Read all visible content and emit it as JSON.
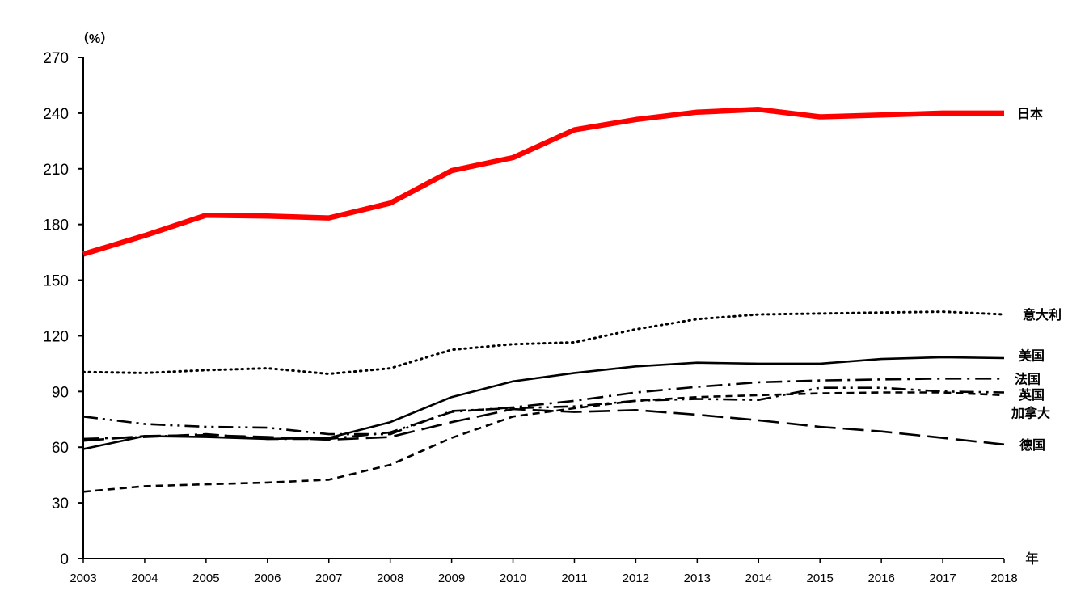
{
  "chart_data": {
    "type": "line",
    "title": "",
    "xlabel": "年",
    "ylabel": "（%）",
    "ylim": [
      0,
      270
    ],
    "yticks": [
      0,
      30,
      60,
      90,
      120,
      150,
      180,
      210,
      240,
      270
    ],
    "x": [
      2003,
      2004,
      2005,
      2006,
      2007,
      2008,
      2009,
      2010,
      2011,
      2012,
      2013,
      2014,
      2015,
      2016,
      2017,
      2018
    ],
    "grid": false,
    "legend": "inline-right",
    "series": [
      {
        "name": "日本",
        "color": "#ff0000",
        "style": "solid-thick",
        "values": [
          164,
          174,
          185,
          184.5,
          183.5,
          191.5,
          209,
          216,
          231,
          236.5,
          240.5,
          242,
          238,
          239,
          240,
          240
        ]
      },
      {
        "name": "意大利",
        "color": "#000000",
        "style": "dotted",
        "values": [
          100.5,
          100,
          101.5,
          102.5,
          99.5,
          102.5,
          112.5,
          115.5,
          116.5,
          123.5,
          129,
          131.5,
          132,
          132.5,
          133,
          131.5
        ]
      },
      {
        "name": "美国",
        "color": "#000000",
        "style": "solid",
        "values": [
          59,
          66,
          65.5,
          64.5,
          65,
          73.5,
          87,
          95.5,
          100,
          103.5,
          105.5,
          105,
          105,
          107.5,
          108.5,
          108
        ]
      },
      {
        "name": "法国",
        "color": "#000000",
        "style": "dash-dot",
        "values": [
          64.5,
          65.5,
          67,
          64.5,
          64.5,
          68,
          79,
          81.5,
          85,
          89.5,
          92.5,
          95,
          96,
          96.5,
          97,
          97
        ]
      },
      {
        "name": "英国",
        "color": "#000000",
        "style": "dash-dot-dot",
        "values": [
          76.5,
          72.5,
          71,
          70.5,
          67,
          67,
          79.5,
          81,
          82,
          85,
          86,
          85.5,
          92,
          92,
          90,
          89.5
        ]
      },
      {
        "name": "加拿大",
        "color": "#000000",
        "style": "short-dash",
        "values": [
          36,
          39,
          40,
          41,
          42.5,
          50.5,
          65,
          76.5,
          81,
          85,
          87,
          88,
          89,
          89.5,
          89.5,
          88
        ]
      },
      {
        "name": "德国",
        "color": "#000000",
        "style": "long-dash",
        "values": [
          63.5,
          66,
          66.5,
          65.5,
          64,
          65.5,
          73.5,
          80.5,
          79,
          80,
          77.5,
          74.5,
          71,
          68.5,
          65,
          61.5
        ]
      }
    ],
    "label_positions": {
      "日本": 240,
      "意大利": 131.5,
      "美国": 109.5,
      "法国": 97,
      "英国": 88.5,
      "加拿大": 78.5,
      "德国": 61.5
    }
  }
}
